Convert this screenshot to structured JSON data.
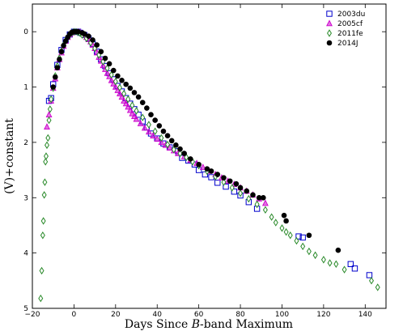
{
  "chart_data": {
    "type": "scatter",
    "xlabel_prefix": "Days Since ",
    "xlabel_italic": "B",
    "xlabel_suffix": "-band Maximum",
    "ylabel": "(V)+constant",
    "xlim": [
      -20,
      150
    ],
    "ylim": [
      5,
      -0.5
    ],
    "x_ticks": [
      -20,
      0,
      20,
      40,
      60,
      80,
      100,
      120,
      140
    ],
    "y_ticks": [
      0,
      1,
      2,
      3,
      4,
      5
    ],
    "legend_position": "top-right",
    "grid": false,
    "series": [
      {
        "name": "2003du",
        "marker": "square",
        "color": "#0000cc",
        "points": [
          [
            -12,
            1.25
          ],
          [
            -11,
            1.2
          ],
          [
            -10,
            0.95
          ],
          [
            -8,
            0.6
          ],
          [
            -6,
            0.33
          ],
          [
            -4,
            0.15
          ],
          [
            -2,
            0.05
          ],
          [
            0,
            0.0
          ],
          [
            1,
            0.0
          ],
          [
            2,
            0.0
          ],
          [
            3,
            0.02
          ],
          [
            5,
            0.06
          ],
          [
            7,
            0.12
          ],
          [
            9,
            0.22
          ],
          [
            11,
            0.36
          ],
          [
            13,
            0.5
          ],
          [
            15,
            0.62
          ],
          [
            17,
            0.75
          ],
          [
            19,
            0.86
          ],
          [
            21,
            0.98
          ],
          [
            23,
            1.08
          ],
          [
            25,
            1.2
          ],
          [
            27,
            1.3
          ],
          [
            29,
            1.4
          ],
          [
            31,
            1.5
          ],
          [
            33,
            1.62
          ],
          [
            35,
            1.73
          ],
          [
            37,
            1.84
          ],
          [
            40,
            1.93
          ],
          [
            43,
            2.02
          ],
          [
            46,
            2.09
          ],
          [
            50,
            2.16
          ],
          [
            52,
            2.28
          ],
          [
            55,
            2.33
          ],
          [
            58,
            2.4
          ],
          [
            60,
            2.5
          ],
          [
            63,
            2.58
          ],
          [
            66,
            2.63
          ],
          [
            69,
            2.73
          ],
          [
            73,
            2.8
          ],
          [
            77,
            2.89
          ],
          [
            80,
            2.96
          ],
          [
            84,
            3.08
          ],
          [
            88,
            3.2
          ],
          [
            108,
            3.7
          ],
          [
            110,
            3.72
          ],
          [
            133,
            4.2
          ],
          [
            135,
            4.28
          ],
          [
            142,
            4.4
          ]
        ]
      },
      {
        "name": "2005cf",
        "marker": "triangle",
        "color": "#cc00cc",
        "points": [
          [
            -13,
            1.72
          ],
          [
            -12,
            1.5
          ],
          [
            -11,
            1.25
          ],
          [
            -10,
            1.02
          ],
          [
            -9,
            0.85
          ],
          [
            -8,
            0.65
          ],
          [
            -7,
            0.5
          ],
          [
            -6,
            0.38
          ],
          [
            -5,
            0.26
          ],
          [
            -4,
            0.17
          ],
          [
            -3,
            0.1
          ],
          [
            -2,
            0.05
          ],
          [
            -1,
            0.02
          ],
          [
            0,
            0.0
          ],
          [
            1,
            0.0
          ],
          [
            2,
            0.0
          ],
          [
            3,
            0.01
          ],
          [
            4,
            0.03
          ],
          [
            5,
            0.06
          ],
          [
            6,
            0.1
          ],
          [
            7,
            0.14
          ],
          [
            8,
            0.18
          ],
          [
            9,
            0.24
          ],
          [
            10,
            0.3
          ],
          [
            11,
            0.38
          ],
          [
            12,
            0.46
          ],
          [
            13,
            0.53
          ],
          [
            14,
            0.61
          ],
          [
            15,
            0.68
          ],
          [
            16,
            0.75
          ],
          [
            17,
            0.81
          ],
          [
            18,
            0.88
          ],
          [
            19,
            0.94
          ],
          [
            20,
            1.0
          ],
          [
            21,
            1.06
          ],
          [
            22,
            1.12
          ],
          [
            23,
            1.18
          ],
          [
            24,
            1.25
          ],
          [
            25,
            1.3
          ],
          [
            26,
            1.36
          ],
          [
            27,
            1.42
          ],
          [
            28,
            1.48
          ],
          [
            29,
            1.53
          ],
          [
            30,
            1.58
          ],
          [
            32,
            1.66
          ],
          [
            34,
            1.74
          ],
          [
            36,
            1.81
          ],
          [
            38,
            1.88
          ],
          [
            40,
            1.94
          ],
          [
            42,
            2.0
          ],
          [
            44,
            2.05
          ],
          [
            46,
            2.1
          ],
          [
            48,
            2.15
          ],
          [
            50,
            2.2
          ],
          [
            53,
            2.26
          ],
          [
            56,
            2.32
          ],
          [
            59,
            2.38
          ],
          [
            62,
            2.45
          ],
          [
            65,
            2.52
          ],
          [
            68,
            2.58
          ],
          [
            71,
            2.64
          ],
          [
            74,
            2.7
          ],
          [
            77,
            2.76
          ],
          [
            80,
            2.82
          ],
          [
            83,
            2.88
          ],
          [
            86,
            2.95
          ],
          [
            89,
            3.02
          ],
          [
            92,
            3.1
          ]
        ]
      },
      {
        "name": "2011fe",
        "marker": "diamond",
        "color": "#2a8a2a",
        "points": [
          [
            -16,
            4.82
          ],
          [
            -15.5,
            4.32
          ],
          [
            -15,
            3.68
          ],
          [
            -14.7,
            3.42
          ],
          [
            -14.3,
            2.95
          ],
          [
            -14,
            2.72
          ],
          [
            -13.7,
            2.35
          ],
          [
            -13.4,
            2.25
          ],
          [
            -13,
            2.05
          ],
          [
            -12.5,
            1.92
          ],
          [
            -12,
            1.6
          ],
          [
            -11.5,
            1.4
          ],
          [
            -11,
            1.22
          ],
          [
            -10,
            1.02
          ],
          [
            -9,
            0.8
          ],
          [
            -8,
            0.62
          ],
          [
            -7,
            0.48
          ],
          [
            -6,
            0.35
          ],
          [
            -5,
            0.24
          ],
          [
            -4,
            0.16
          ],
          [
            -3,
            0.1
          ],
          [
            -2,
            0.05
          ],
          [
            -1,
            0.02
          ],
          [
            0,
            0.0
          ],
          [
            1,
            0.0
          ],
          [
            2,
            0.01
          ],
          [
            3,
            0.03
          ],
          [
            4,
            0.06
          ],
          [
            6,
            0.12
          ],
          [
            8,
            0.2
          ],
          [
            10,
            0.3
          ],
          [
            12,
            0.42
          ],
          [
            14,
            0.54
          ],
          [
            16,
            0.66
          ],
          [
            18,
            0.78
          ],
          [
            20,
            0.9
          ],
          [
            22,
            1.01
          ],
          [
            24,
            1.12
          ],
          [
            26,
            1.22
          ],
          [
            28,
            1.33
          ],
          [
            30,
            1.43
          ],
          [
            33,
            1.55
          ],
          [
            36,
            1.68
          ],
          [
            39,
            1.8
          ],
          [
            42,
            1.92
          ],
          [
            45,
            2.04
          ],
          [
            48,
            2.13
          ],
          [
            51,
            2.2
          ],
          [
            54,
            2.27
          ],
          [
            57,
            2.35
          ],
          [
            60,
            2.42
          ],
          [
            64,
            2.52
          ],
          [
            68,
            2.62
          ],
          [
            72,
            2.72
          ],
          [
            76,
            2.82
          ],
          [
            80,
            2.92
          ],
          [
            84,
            3.02
          ],
          [
            88,
            3.12
          ],
          [
            92,
            3.22
          ],
          [
            95,
            3.35
          ],
          [
            97,
            3.45
          ],
          [
            100,
            3.55
          ],
          [
            102,
            3.62
          ],
          [
            104,
            3.68
          ],
          [
            107,
            3.78
          ],
          [
            110,
            3.88
          ],
          [
            113,
            3.97
          ],
          [
            116,
            4.04
          ],
          [
            120,
            4.12
          ],
          [
            123,
            4.18
          ],
          [
            126,
            4.2
          ],
          [
            130,
            4.3
          ],
          [
            143,
            4.5
          ],
          [
            146,
            4.62
          ]
        ]
      },
      {
        "name": "2014J",
        "marker": "circle",
        "color": "#000000",
        "points": [
          [
            -10,
            1.0
          ],
          [
            -9,
            0.82
          ],
          [
            -8,
            0.65
          ],
          [
            -7,
            0.5
          ],
          [
            -6,
            0.36
          ],
          [
            -5,
            0.25
          ],
          [
            -4,
            0.17
          ],
          [
            -3,
            0.1
          ],
          [
            -2,
            0.04
          ],
          [
            -1,
            0.01
          ],
          [
            0,
            0.0
          ],
          [
            1,
            0.0
          ],
          [
            2,
            0.0
          ],
          [
            4,
            0.02
          ],
          [
            5,
            0.04
          ],
          [
            7,
            0.08
          ],
          [
            9,
            0.15
          ],
          [
            11,
            0.24
          ],
          [
            13,
            0.36
          ],
          [
            15,
            0.48
          ],
          [
            17,
            0.58
          ],
          [
            19,
            0.7
          ],
          [
            21,
            0.8
          ],
          [
            23,
            0.88
          ],
          [
            25,
            0.95
          ],
          [
            27,
            1.02
          ],
          [
            29,
            1.1
          ],
          [
            31,
            1.18
          ],
          [
            33,
            1.28
          ],
          [
            35,
            1.38
          ],
          [
            37,
            1.5
          ],
          [
            39,
            1.6
          ],
          [
            41,
            1.7
          ],
          [
            43,
            1.8
          ],
          [
            45,
            1.88
          ],
          [
            47,
            1.97
          ],
          [
            49,
            2.05
          ],
          [
            51,
            2.12
          ],
          [
            53,
            2.2
          ],
          [
            56,
            2.3
          ],
          [
            60,
            2.4
          ],
          [
            64,
            2.48
          ],
          [
            66,
            2.52
          ],
          [
            69,
            2.58
          ],
          [
            72,
            2.64
          ],
          [
            75,
            2.7
          ],
          [
            78,
            2.75
          ],
          [
            80,
            2.82
          ],
          [
            83,
            2.88
          ],
          [
            86,
            2.95
          ],
          [
            89,
            3.0
          ],
          [
            91,
            3.0
          ],
          [
            101,
            3.32
          ],
          [
            102,
            3.42
          ],
          [
            113,
            3.68
          ],
          [
            127,
            3.95
          ]
        ]
      }
    ]
  }
}
